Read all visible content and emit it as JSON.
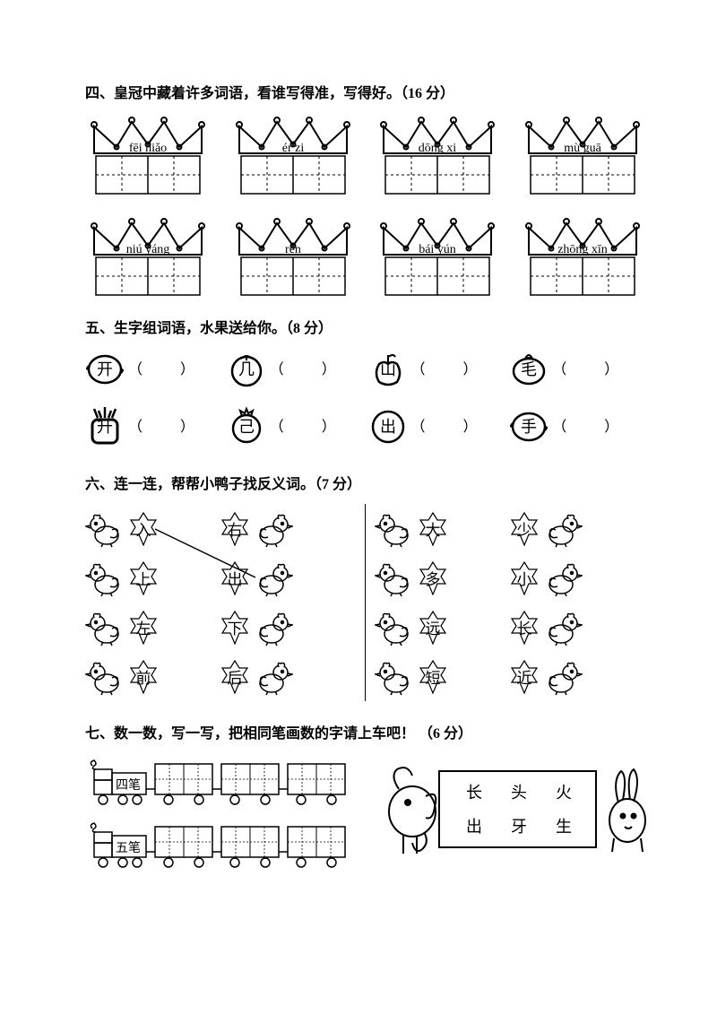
{
  "colors": {
    "ink": "#000000",
    "bg": "#ffffff",
    "line": "#000000"
  },
  "typography": {
    "base_fontsize": 16,
    "title_weight": "bold"
  },
  "section4": {
    "title": "四、皇冠中藏着许多词语，看谁写得准，写得好。（",
    "points": "16 分",
    "title_end": "）",
    "row1": [
      {
        "pinyin": "fēi niǎo"
      },
      {
        "pinyin": "ér  zi"
      },
      {
        "pinyin": "dōng xi"
      },
      {
        "pinyin": "mù guā"
      }
    ],
    "row2": [
      {
        "pinyin": "niú yáng"
      },
      {
        "pinyin": "rén"
      },
      {
        "pinyin": "bái  yún"
      },
      {
        "pinyin": "zhōng xīn"
      }
    ]
  },
  "section5": {
    "title": "五、生字组词语，水果送给你。（",
    "points": "8 分",
    "title_end": "）",
    "row1": [
      {
        "char": "开",
        "shape": "lemon"
      },
      {
        "char": "几",
        "shape": "tomato"
      },
      {
        "char": "山",
        "shape": "apple"
      },
      {
        "char": "毛",
        "shape": "lemonleaf"
      }
    ],
    "row2": [
      {
        "char": "升",
        "shape": "pineapple"
      },
      {
        "char": "己",
        "shape": "pomegranate"
      },
      {
        "char": "出",
        "shape": "circle"
      },
      {
        "char": "手",
        "shape": "lemon"
      }
    ]
  },
  "section6": {
    "title": "六、连一连，帮帮小鸭子找反义词。（",
    "points": "7 分",
    "title_end": "）",
    "left_pairs": [
      {
        "l": "入",
        "r": "右"
      },
      {
        "l": "上",
        "r": "出"
      },
      {
        "l": "左",
        "r": "下"
      },
      {
        "l": "前",
        "r": "后"
      }
    ],
    "right_pairs": [
      {
        "l": "大",
        "r": "少"
      },
      {
        "l": "多",
        "r": "小"
      },
      {
        "l": "远",
        "r": "长"
      },
      {
        "l": "短",
        "r": "近"
      }
    ],
    "example_line": {
      "from": "入",
      "to": "出"
    }
  },
  "section7": {
    "title": "七、数一数，写一写，把相同笔画数的字请上车吧！ （",
    "points": "6 分",
    "title_end": "）",
    "trains": [
      {
        "label": "四笔",
        "cars": 3
      },
      {
        "label": "五笔",
        "cars": 3
      }
    ],
    "char_box": {
      "row1": [
        "长",
        "头",
        "火"
      ],
      "row2": [
        "出",
        "牙",
        "生"
      ]
    }
  }
}
